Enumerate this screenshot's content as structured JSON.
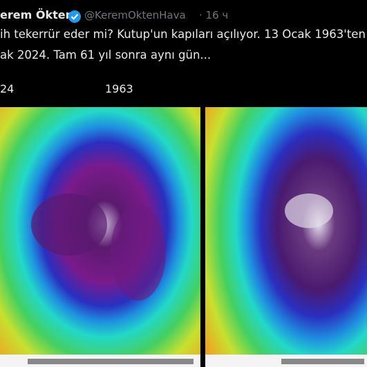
{
  "tweet": {
    "author_name": "erem Ökten",
    "handle": "@KeremOktenHava",
    "time": "· 16 ч",
    "text_lines": [
      "ih tekerrür eder mi? Kutup'un kapıları açılıyor. 13 Ocak 1963'ten",
      "ak 2024. Tam 61 yıl sonra aynı gün..."
    ],
    "image_labels": [
      "24",
      "1963"
    ]
  }
}
